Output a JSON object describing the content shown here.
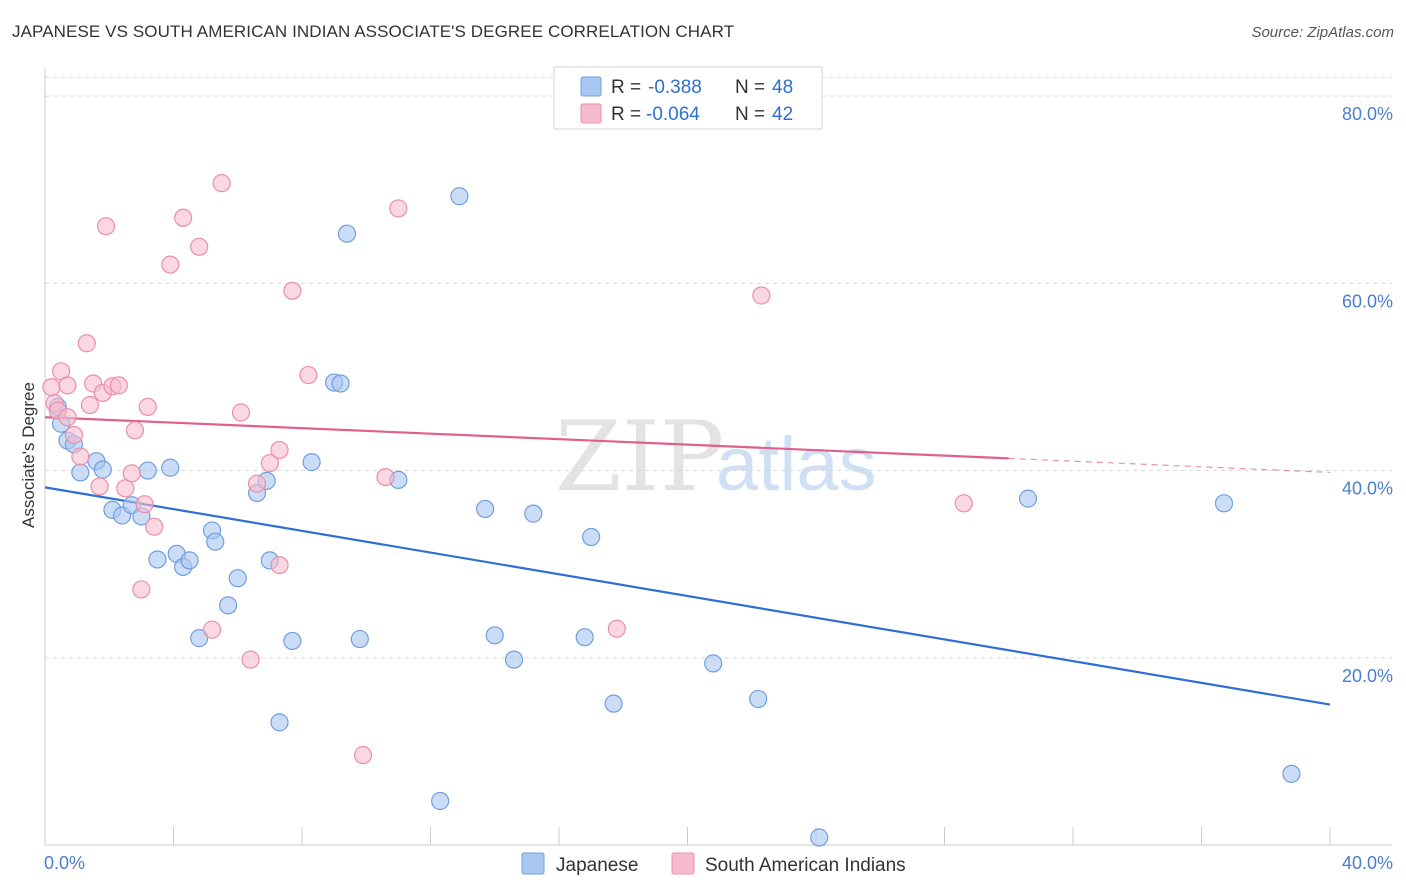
{
  "title": "JAPANESE VS SOUTH AMERICAN INDIAN ASSOCIATE'S DEGREE CORRELATION CHART",
  "source": "Source: ZipAtlas.com",
  "watermark": {
    "zip": "ZIP",
    "atlas": "atlas"
  },
  "colors": {
    "blue_fill": "#a9c7f0",
    "blue_stroke": "#6f9fe0",
    "blue_line": "#2f6fd3",
    "pink_fill": "#f6bccd",
    "pink_stroke": "#ea8fab",
    "pink_line": "#e0608a",
    "axis_text": "#4a7fd0",
    "grid": "#d9d9d9"
  },
  "legend": {
    "rows": [
      {
        "r_label": "R =",
        "r_value": "-0.388",
        "n_label": "N =",
        "n_value": "48"
      },
      {
        "r_label": "R =",
        "r_value": "-0.064",
        "n_label": "N =",
        "n_value": "42"
      }
    ]
  },
  "bottom_legend": [
    "Japanese",
    "South American Indians"
  ],
  "chart_data": {
    "type": "scatter",
    "title": "JAPANESE VS SOUTH AMERICAN INDIAN ASSOCIATE'S DEGREE CORRELATION CHART",
    "xlabel": "",
    "ylabel": "Associate's Degree",
    "xlim": [
      0,
      40
    ],
    "ylim": [
      0,
      83
    ],
    "x_tick_labels": [
      "0.0%",
      "40.0%"
    ],
    "y_ticks": [
      20,
      40,
      60,
      80
    ],
    "y_tick_labels": [
      "20.0%",
      "40.0%",
      "60.0%",
      "80.0%"
    ],
    "grid": true,
    "series": [
      {
        "name": "Japanese",
        "R": -0.388,
        "N": 48,
        "trend": {
          "x": [
            0,
            40
          ],
          "y": [
            38.2,
            15.0
          ]
        },
        "points": [
          [
            0.4,
            46.8
          ],
          [
            0.5,
            45.0
          ],
          [
            0.7,
            43.2
          ],
          [
            0.9,
            42.8
          ],
          [
            1.1,
            39.8
          ],
          [
            1.6,
            41.0
          ],
          [
            1.8,
            40.1
          ],
          [
            2.1,
            35.8
          ],
          [
            2.4,
            35.2
          ],
          [
            2.7,
            36.3
          ],
          [
            3.0,
            35.1
          ],
          [
            3.2,
            40.0
          ],
          [
            3.5,
            30.5
          ],
          [
            3.9,
            40.3
          ],
          [
            4.1,
            31.1
          ],
          [
            4.3,
            29.7
          ],
          [
            4.5,
            30.4
          ],
          [
            4.8,
            22.1
          ],
          [
            5.2,
            33.6
          ],
          [
            5.3,
            32.4
          ],
          [
            5.7,
            25.6
          ],
          [
            6.0,
            28.5
          ],
          [
            6.6,
            37.6
          ],
          [
            6.9,
            38.9
          ],
          [
            7.0,
            30.4
          ],
          [
            7.3,
            13.1
          ],
          [
            7.7,
            21.8
          ],
          [
            8.3,
            40.9
          ],
          [
            9.0,
            49.4
          ],
          [
            9.2,
            49.3
          ],
          [
            9.4,
            65.3
          ],
          [
            9.8,
            22.0
          ],
          [
            11.0,
            39.0
          ],
          [
            12.3,
            4.7
          ],
          [
            12.9,
            69.3
          ],
          [
            13.7,
            35.9
          ],
          [
            14.0,
            22.4
          ],
          [
            14.6,
            19.8
          ],
          [
            15.2,
            35.4
          ],
          [
            16.8,
            22.2
          ],
          [
            17.0,
            32.9
          ],
          [
            17.7,
            15.1
          ],
          [
            20.8,
            19.4
          ],
          [
            22.2,
            15.6
          ],
          [
            24.1,
            0.8
          ],
          [
            30.6,
            37.0
          ],
          [
            36.7,
            36.5
          ],
          [
            38.8,
            7.6
          ]
        ]
      },
      {
        "name": "South American Indians",
        "R": -0.064,
        "N": 42,
        "trend": {
          "x": [
            0,
            30
          ],
          "y": [
            45.7,
            41.3
          ]
        },
        "trend_dashed": {
          "x": [
            30,
            40
          ],
          "y": [
            41.3,
            39.8
          ]
        },
        "points": [
          [
            0.2,
            48.9
          ],
          [
            0.3,
            47.2
          ],
          [
            0.4,
            46.4
          ],
          [
            0.5,
            50.6
          ],
          [
            0.7,
            49.1
          ],
          [
            0.7,
            45.7
          ],
          [
            0.9,
            43.8
          ],
          [
            1.1,
            41.5
          ],
          [
            1.3,
            53.6
          ],
          [
            1.4,
            47.0
          ],
          [
            1.5,
            49.3
          ],
          [
            1.7,
            38.3
          ],
          [
            1.8,
            48.3
          ],
          [
            1.9,
            66.1
          ],
          [
            2.1,
            49.0
          ],
          [
            2.3,
            49.1
          ],
          [
            2.5,
            38.1
          ],
          [
            2.7,
            39.7
          ],
          [
            2.8,
            44.3
          ],
          [
            3.0,
            27.3
          ],
          [
            3.1,
            36.4
          ],
          [
            3.2,
            46.8
          ],
          [
            3.4,
            34.0
          ],
          [
            3.9,
            62.0
          ],
          [
            4.3,
            67.0
          ],
          [
            4.8,
            63.9
          ],
          [
            5.2,
            23.0
          ],
          [
            5.5,
            70.7
          ],
          [
            6.1,
            46.2
          ],
          [
            6.4,
            19.8
          ],
          [
            6.6,
            38.6
          ],
          [
            7.0,
            40.8
          ],
          [
            7.3,
            42.2
          ],
          [
            7.3,
            29.9
          ],
          [
            7.7,
            59.2
          ],
          [
            8.2,
            50.2
          ],
          [
            9.9,
            9.6
          ],
          [
            10.6,
            39.3
          ],
          [
            11.0,
            68.0
          ],
          [
            17.8,
            23.1
          ],
          [
            22.3,
            58.7
          ],
          [
            28.6,
            36.5
          ]
        ]
      }
    ]
  }
}
